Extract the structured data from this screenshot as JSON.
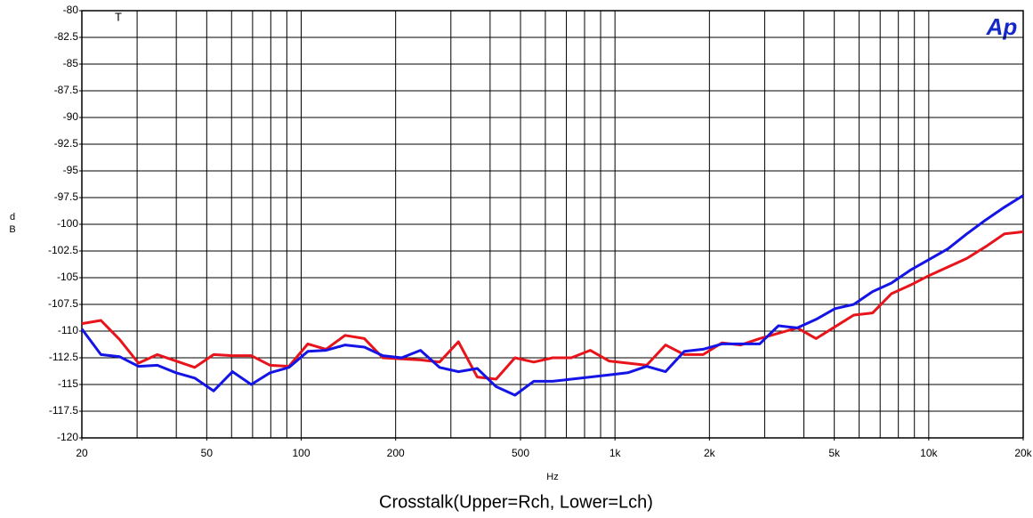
{
  "chart_data": {
    "type": "line",
    "title": "Crosstalk(Upper=Rch, Lower=Lch)",
    "x_label": "Hz",
    "y_label": "dB",
    "annotation": "T",
    "logo": "Ap",
    "x_log": true,
    "grid": true,
    "x": [
      20,
      23,
      26.4,
      30.3,
      34.8,
      39.9,
      45.8,
      52.6,
      60.4,
      69.3,
      79.6,
      91.4,
      105,
      120,
      138,
      159,
      182,
      209,
      240,
      276,
      317,
      364,
      418,
      480,
      551,
      633,
      726,
      834,
      957,
      1099,
      1262,
      1449,
      1663,
      1910,
      2193,
      2518,
      2891,
      3319,
      3811,
      4376,
      5024,
      5768,
      6623,
      7604,
      8731,
      10024,
      11509,
      13215,
      15173,
      17421,
      20000
    ],
    "series": [
      {
        "color": "#e8141c",
        "values": [
          -109.3,
          -109,
          -110.8,
          -113,
          -112.2,
          -112.8,
          -113.4,
          -112.2,
          -112.3,
          -112.3,
          -113.2,
          -113.3,
          -111.2,
          -111.7,
          -110.4,
          -110.7,
          -112.5,
          -112.6,
          -112.7,
          -112.9,
          -111,
          -114.3,
          -114.5,
          -112.5,
          -112.9,
          -112.5,
          -112.5,
          -111.8,
          -112.8,
          -113,
          -113.2,
          -111.3,
          -112.2,
          -112.2,
          -111.1,
          -111.3,
          -110.7,
          -110.2,
          -109.7,
          -110.7,
          -109.6,
          -108.5,
          -108.3,
          -106.5,
          -105.7,
          -104.8,
          -104,
          -103.2,
          -102.1,
          -100.9,
          -100.7
        ]
      },
      {
        "color": "#1414e6",
        "values": [
          -109.8,
          -112.2,
          -112.4,
          -113.3,
          -113.2,
          -113.9,
          -114.4,
          -115.6,
          -113.8,
          -115,
          -113.9,
          -113.4,
          -111.9,
          -111.8,
          -111.3,
          -111.5,
          -112.3,
          -112.5,
          -111.8,
          -113.4,
          -113.8,
          -113.5,
          -115.2,
          -116,
          -114.7,
          -114.7,
          -114.5,
          -114.3,
          -114.1,
          -113.9,
          -113.3,
          -113.8,
          -111.9,
          -111.7,
          -111.2,
          -111.2,
          -111.2,
          -109.5,
          -109.7,
          -108.9,
          -107.9,
          -107.5,
          -106.3,
          -105.5,
          -104.3,
          -103.3,
          -102.3,
          -100.9,
          -99.6,
          -98.4,
          -97.3
        ]
      }
    ],
    "xlim": [
      20,
      20000
    ],
    "xticks": [
      20,
      50,
      100,
      200,
      500,
      {
        "value": 1000,
        "label": "1k"
      },
      {
        "value": 2000,
        "label": "2k"
      },
      {
        "value": 5000,
        "label": "5k"
      },
      {
        "value": 10000,
        "label": "10k"
      },
      {
        "value": 20000,
        "label": "20k"
      }
    ],
    "xgrid_minor": [
      30,
      40,
      60,
      70,
      80,
      90,
      300,
      400,
      600,
      700,
      800,
      900,
      3000,
      4000,
      6000,
      7000,
      8000,
      9000
    ],
    "ylim": [
      -120,
      -80
    ],
    "yticks": [
      -80,
      -82.5,
      -85,
      -87.5,
      -90,
      -92.5,
      -95,
      -97.5,
      -100,
      -102.5,
      -105,
      -107.5,
      -110,
      -112.5,
      -115,
      -117.5,
      -120
    ]
  }
}
